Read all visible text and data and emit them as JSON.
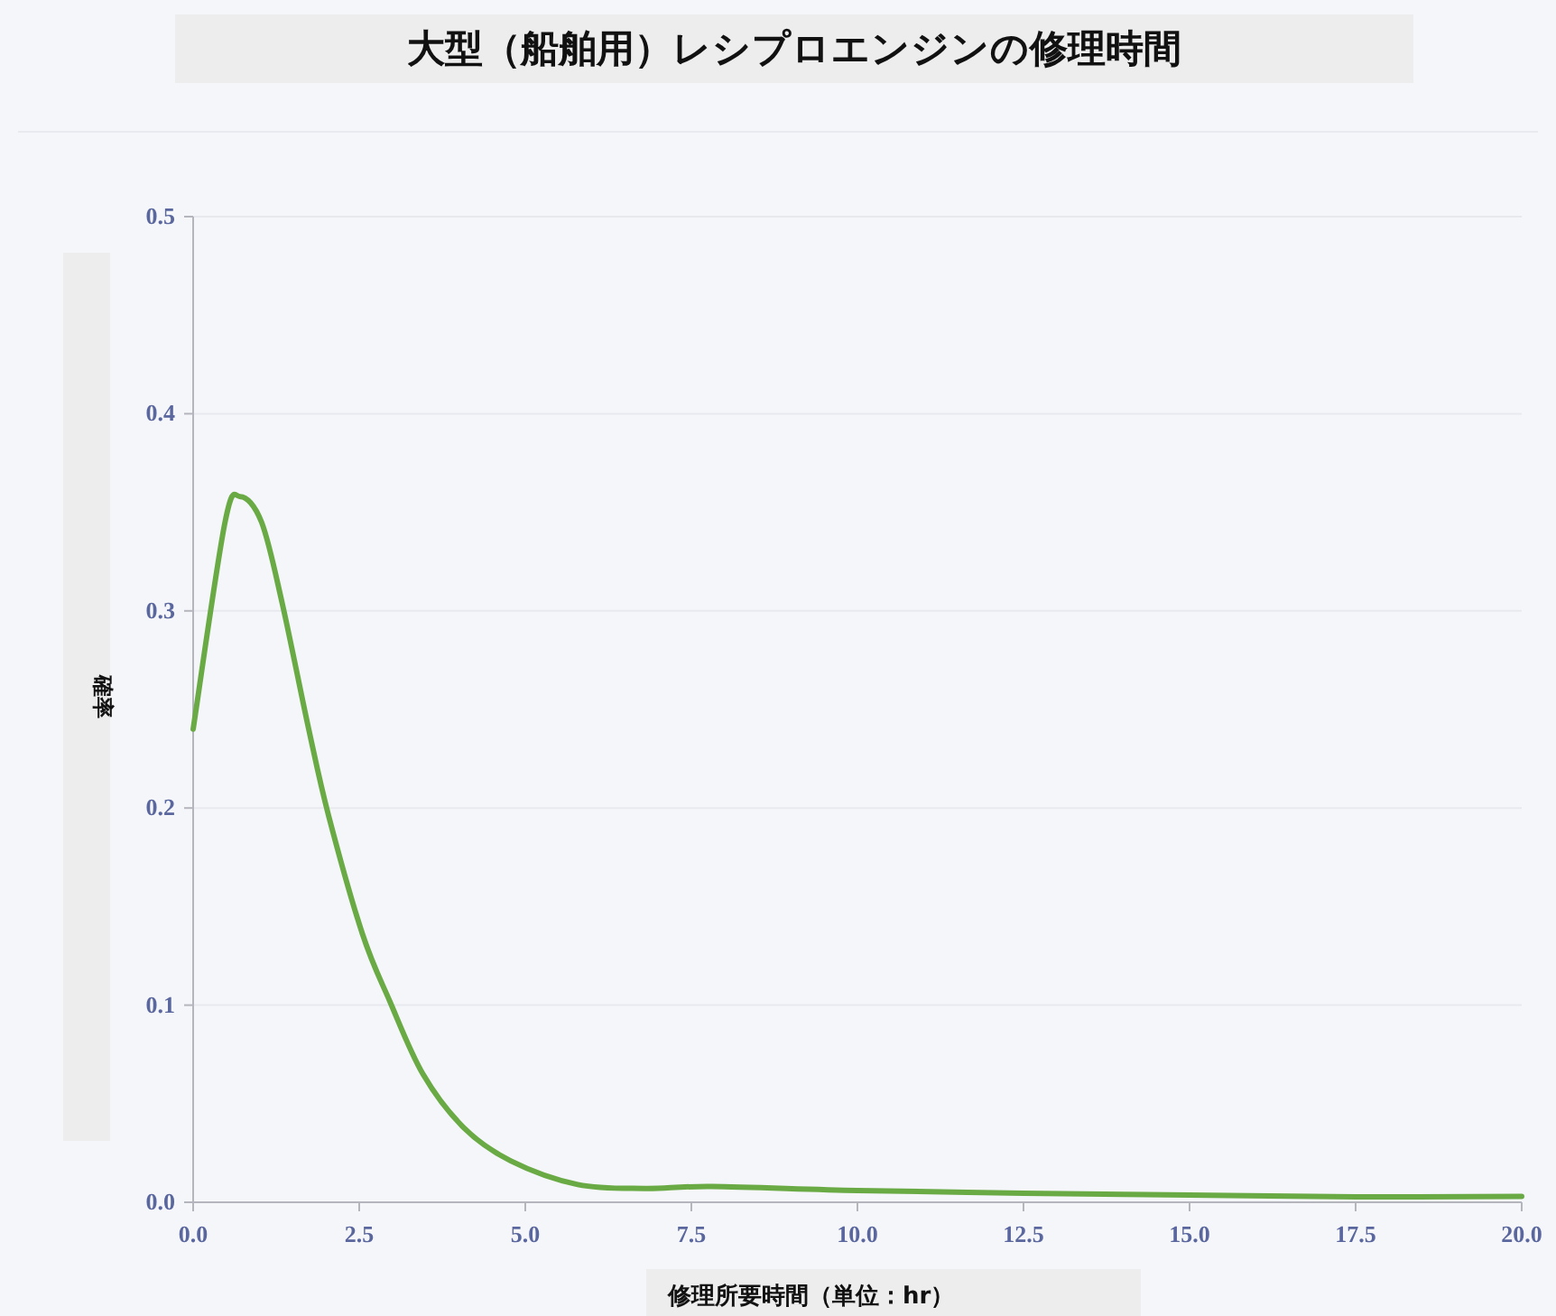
{
  "chart_data": {
    "type": "line",
    "title": "大型（船舶用）レシプロエンジンの修理時間",
    "xlabel": "修理所要時間（単位：hr）",
    "ylabel": "確率",
    "x": [
      0,
      0.48,
      0.71,
      1.03,
      1.34,
      1.74,
      2.04,
      2.55,
      2.96,
      3.46,
      4.07,
      4.78,
      5.79,
      6.8,
      7.81,
      10,
      12.5,
      15,
      17.5,
      20
    ],
    "values": [
      0.24,
      0.345,
      0.358,
      0.345,
      0.304,
      0.24,
      0.196,
      0.136,
      0.102,
      0.065,
      0.038,
      0.021,
      0.009,
      0.007,
      0.008,
      0.006,
      0.0046,
      0.0037,
      0.0027,
      0.003
    ],
    "color": "#6aaa45",
    "xlim": [
      0,
      20
    ],
    "ylim": [
      0,
      0.5
    ],
    "xticks": [
      {
        "value": 0,
        "label": "0.0"
      },
      2.5,
      {
        "value": 5,
        "label": "5.0"
      },
      7.5,
      {
        "value": 10,
        "label": "10.0"
      },
      12.5,
      {
        "value": 15,
        "label": "15.0"
      },
      17.5,
      {
        "value": 20,
        "label": "20.0"
      }
    ],
    "yticks": [
      {
        "value": 0,
        "label": "0.0"
      },
      0.1,
      0.2,
      0.3,
      0.4,
      0.5
    ],
    "grid": "y",
    "line_style": "solid",
    "marker": "none"
  }
}
